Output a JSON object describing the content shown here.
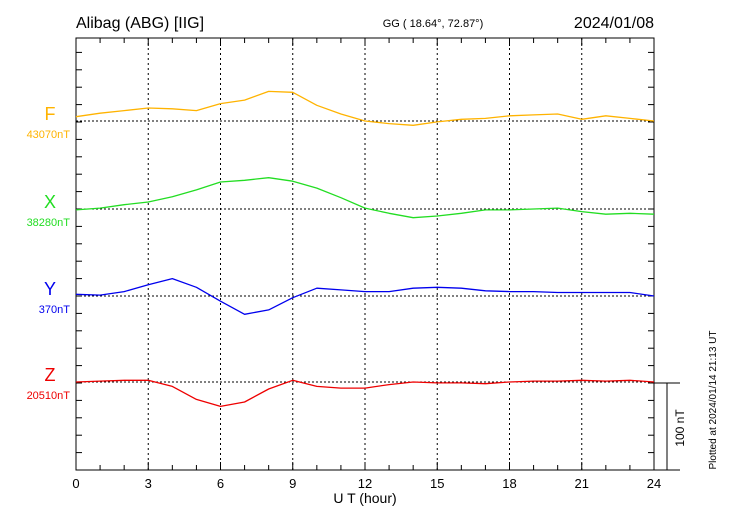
{
  "header": {
    "station": "Alibag (ABG)  [IIG]",
    "coords": "GG ( 18.64°,  72.87°)",
    "date": "2024/01/08"
  },
  "footer": {
    "plotted": "Plotted at 2024/01/14 21:13 UT"
  },
  "chart_data": {
    "type": "line",
    "xlabel": "U T (hour)",
    "xlim": [
      0,
      24
    ],
    "xticks": [
      0,
      3,
      6,
      9,
      12,
      15,
      18,
      21,
      24
    ],
    "xtick_labels": [
      "0",
      "3",
      "6",
      "9",
      "12",
      "15",
      "18",
      "21",
      "24"
    ],
    "scale_bar": {
      "label": "100 nT",
      "value_nT": 100
    },
    "grid": "dotted vertical every 3 h, dotted baseline per component",
    "x": [
      0,
      1,
      2,
      3,
      4,
      5,
      6,
      7,
      8,
      9,
      10,
      11,
      12,
      13,
      14,
      15,
      16,
      17,
      18,
      19,
      20,
      21,
      22,
      23,
      24
    ],
    "series": [
      {
        "name": "F",
        "baseline_label": "43070nT",
        "baseline_nT": 43070,
        "color": "#ffb300",
        "deviation_nT": [
          5,
          9,
          12,
          15,
          14,
          12,
          20,
          24,
          34,
          33,
          18,
          8,
          0,
          -3,
          -5,
          -1,
          2,
          3,
          6,
          7,
          8,
          2,
          6,
          3,
          0
        ]
      },
      {
        "name": "X",
        "baseline_label": "38280nT",
        "baseline_nT": 38280,
        "color": "#22dd22",
        "deviation_nT": [
          -1,
          1,
          5,
          8,
          14,
          22,
          31,
          33,
          36,
          32,
          24,
          13,
          1,
          -5,
          -10,
          -8,
          -5,
          -1,
          -1,
          0,
          1,
          -3,
          -6,
          -5,
          -6
        ]
      },
      {
        "name": "Y",
        "baseline_label": "370nT",
        "baseline_nT": 370,
        "color": "#0000ee",
        "deviation_nT": [
          2,
          1,
          5,
          13,
          20,
          10,
          -6,
          -21,
          -16,
          -2,
          9,
          7,
          5,
          5,
          9,
          10,
          9,
          6,
          5,
          5,
          4,
          4,
          4,
          4,
          0
        ]
      },
      {
        "name": "Z",
        "baseline_label": "20510nT",
        "baseline_nT": 20510,
        "color": "#ee0000",
        "deviation_nT": [
          0,
          1,
          2,
          2,
          -5,
          -20,
          -28,
          -23,
          -8,
          2,
          -5,
          -7,
          -7,
          -3,
          0,
          -1,
          -1,
          -2,
          0,
          1,
          1,
          2,
          1,
          2,
          0
        ]
      }
    ]
  }
}
